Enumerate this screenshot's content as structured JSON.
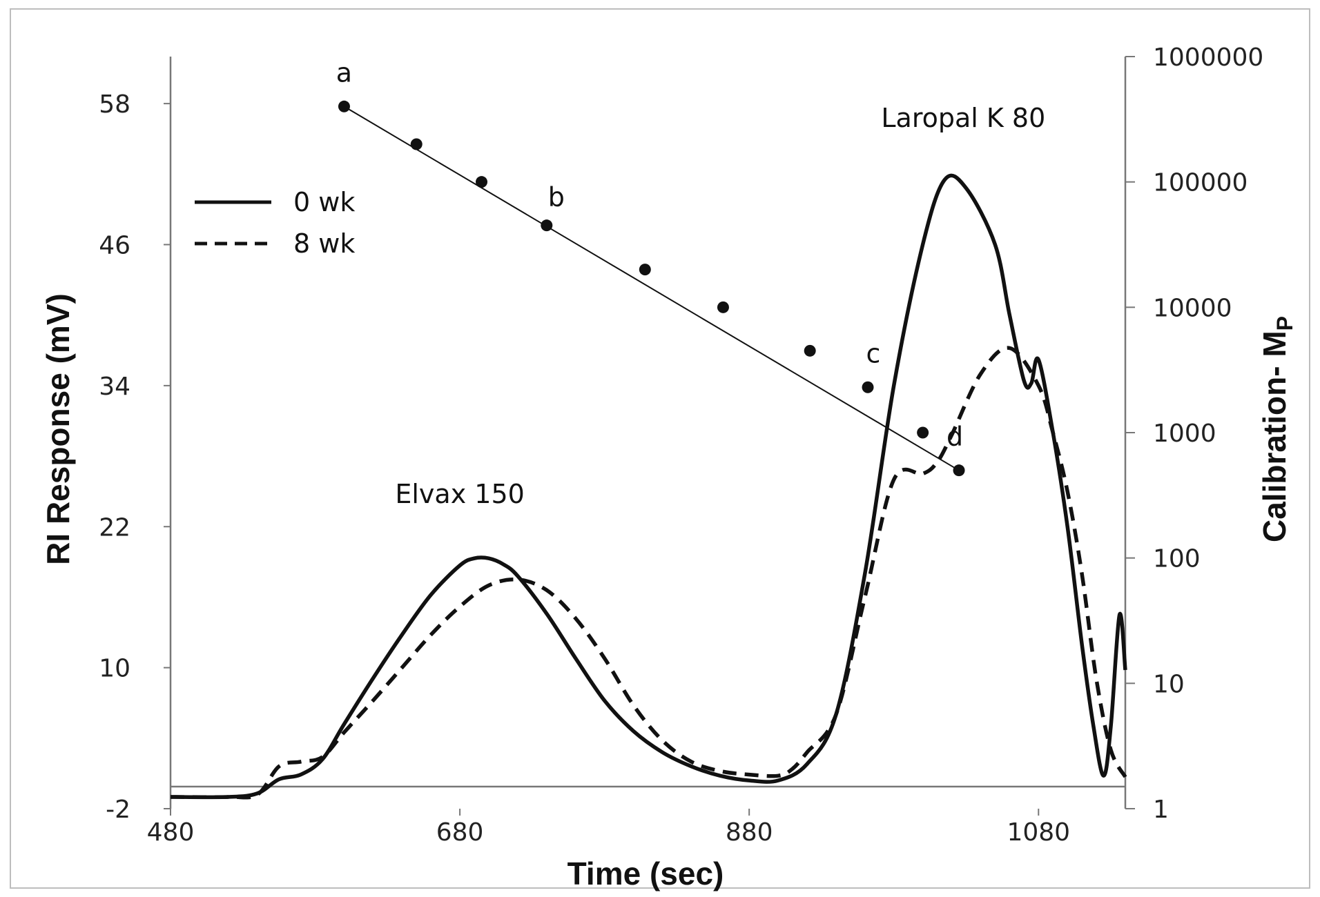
{
  "chart_data": {
    "type": "line",
    "xlabel": "Time (sec)",
    "ylabel": "RI Response (mV)",
    "y2label": "Calibration- M",
    "y2label_sub": "P",
    "xlim": [
      480,
      1140
    ],
    "ylim": [
      -2,
      62
    ],
    "y2lim": [
      1,
      1000000
    ],
    "y2scale": "log",
    "x_ticks": [
      "480",
      "680",
      "880",
      "1080"
    ],
    "y_ticks": [
      "-2",
      "10",
      "22",
      "34",
      "46",
      "58"
    ],
    "y2_ticks": [
      "1",
      "10",
      "100",
      "1000",
      "10000",
      "100000",
      "1000000"
    ],
    "legend": {
      "placement": "upper-left",
      "entries": [
        {
          "label": "0 wk",
          "style": "solid"
        },
        {
          "label": "8 wk",
          "style": "dashed"
        }
      ]
    },
    "series": [
      {
        "name": "0 wk",
        "style": "solid",
        "x": [
          480,
          520,
          540,
          555,
          570,
          585,
          600,
          620,
          640,
          660,
          680,
          690,
          700,
          710,
          720,
          740,
          760,
          780,
          800,
          820,
          840,
          860,
          880,
          900,
          920,
          940,
          960,
          980,
          1000,
          1015,
          1030,
          1050,
          1060,
          1070,
          1075,
          1080,
          1090,
          1100,
          1110,
          1118,
          1125,
          1130,
          1136,
          1140
        ],
        "y": [
          -1.0,
          -1.0,
          -0.7,
          0.5,
          0.9,
          2.2,
          5.2,
          9.1,
          12.8,
          16.2,
          18.7,
          19.3,
          19.3,
          18.8,
          17.8,
          14.6,
          10.8,
          7.2,
          4.6,
          2.8,
          1.6,
          0.8,
          0.4,
          0.4,
          1.8,
          6.0,
          18.0,
          34.0,
          46.0,
          51.5,
          50.8,
          46.0,
          40.0,
          34.4,
          34.2,
          36.2,
          30.0,
          22.0,
          12.0,
          5.0,
          0.8,
          5.0,
          14.5,
          9.8
        ]
      },
      {
        "name": "8 wk",
        "style": "dashed",
        "x": [
          480,
          520,
          540,
          555,
          570,
          585,
          600,
          620,
          640,
          660,
          680,
          700,
          720,
          740,
          760,
          780,
          800,
          820,
          840,
          860,
          880,
          900,
          910,
          920,
          940,
          960,
          980,
          1000,
          1010,
          1020,
          1040,
          1060,
          1080,
          1090,
          1100,
          1110,
          1120,
          1130,
          1140
        ],
        "y": [
          -1.0,
          -1.0,
          -0.8,
          1.6,
          2.0,
          2.4,
          4.5,
          7.2,
          10.0,
          12.8,
          15.2,
          17.0,
          17.5,
          16.6,
          14.2,
          10.8,
          6.8,
          3.8,
          2.0,
          1.2,
          0.9,
          0.8,
          1.4,
          2.8,
          6.0,
          16.0,
          26.0,
          26.5,
          27.5,
          29.8,
          35.0,
          37.2,
          34.0,
          30.0,
          25.0,
          18.0,
          9.0,
          3.0,
          0.7
        ]
      }
    ],
    "calibration": {
      "name": "Calibration",
      "x": [
        600,
        650,
        695,
        740,
        808,
        862,
        922,
        962,
        1000,
        1025
      ],
      "y": [
        400000,
        200000,
        100000,
        45000,
        20000,
        10000,
        4500,
        2300,
        1000,
        500
      ],
      "labels": [
        {
          "text": "a",
          "x": 600,
          "y": 400000
        },
        {
          "text": "b",
          "x": 740,
          "y": 45000
        },
        {
          "text": "c",
          "x": 962,
          "y": 2300
        },
        {
          "text": "d",
          "x": 1025,
          "y": 500
        }
      ]
    },
    "annotations": [
      {
        "text": "Laropal K 80",
        "x": 1028,
        "y": 56
      },
      {
        "text": "Elvax 150",
        "x": 680,
        "y": 24
      }
    ]
  }
}
